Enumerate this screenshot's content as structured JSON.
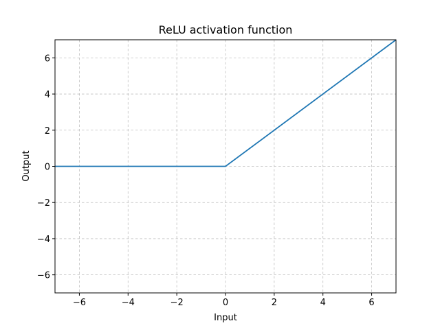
{
  "chart_data": {
    "type": "line",
    "title": "ReLU activation function",
    "xlabel": "Input",
    "ylabel": "Output",
    "xlim": [
      -7,
      7
    ],
    "ylim": [
      -7,
      7
    ],
    "xticks": [
      -6,
      -4,
      -2,
      0,
      2,
      4,
      6
    ],
    "yticks": [
      -6,
      -4,
      -2,
      0,
      2,
      4,
      6
    ],
    "xtick_labels": [
      "−6",
      "−4",
      "−2",
      "0",
      "2",
      "4",
      "6"
    ],
    "ytick_labels": [
      "−6",
      "−4",
      "−2",
      "0",
      "2",
      "4",
      "6"
    ],
    "grid": true,
    "grid_style": "dashed",
    "series": [
      {
        "x": [
          -7,
          0,
          7
        ],
        "y": [
          0,
          0,
          7
        ],
        "color": "#1f77b4"
      }
    ]
  }
}
